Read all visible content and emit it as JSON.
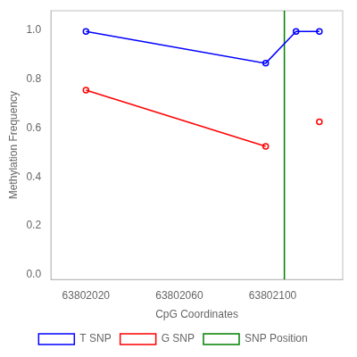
{
  "chart_data": {
    "type": "line",
    "xlabel": "CpG Coordinates",
    "ylabel": "Methylation Frequency",
    "x": [
      63802020,
      63802097,
      63802110,
      63802120
    ],
    "series": [
      {
        "name": "T SNP",
        "color": "blue",
        "marker": "circle",
        "values": [
          0.995,
          0.865,
          0.995,
          0.995
        ]
      },
      {
        "name": "G SNP",
        "color": "red",
        "marker": "circle",
        "values": [
          0.755,
          0.525,
          null,
          0.625
        ]
      }
    ],
    "vline": {
      "x": 63802105,
      "name": "SNP Position",
      "color": "green"
    },
    "xlim": [
      63802005,
      63802130
    ],
    "ylim": [
      -0.02,
      1.08
    ],
    "xticks": [
      63802020,
      63802060,
      63802100
    ],
    "yticks": [
      {
        "value": 0,
        "label": "0.0"
      },
      0.2,
      0.4,
      0.6,
      0.8,
      {
        "value": 1,
        "label": "1.0"
      }
    ],
    "grid": false,
    "legend": "bottom"
  }
}
